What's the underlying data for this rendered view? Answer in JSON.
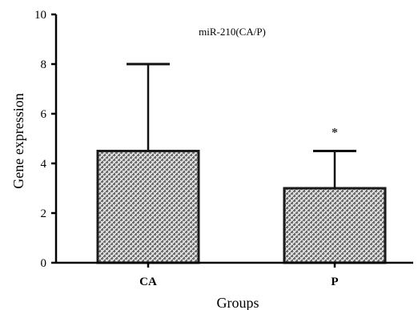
{
  "chart_data": {
    "type": "bar",
    "title": "miR-210(CA/P)",
    "xlabel": "Groups",
    "ylabel": "Gene expression",
    "categories": [
      "CA",
      "P"
    ],
    "values": [
      4.5,
      3.0
    ],
    "error_upper": [
      8.0,
      4.5
    ],
    "annotations": [
      "",
      "*"
    ],
    "ylim": [
      0,
      10
    ],
    "yticks": [
      "0",
      "2",
      "4",
      "6",
      "8",
      "10"
    ],
    "grid": false,
    "bar_fill": "#8a8a8a",
    "bar_stroke": "#1a1a1a"
  }
}
